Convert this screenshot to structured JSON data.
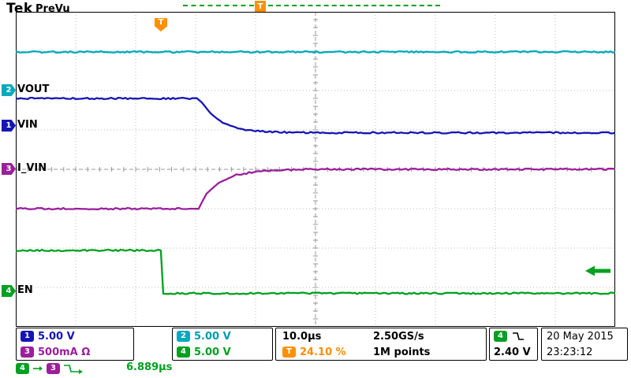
{
  "colors": {
    "ch1": "#1515b5",
    "ch2": "#00a9bd",
    "ch3": "#9b1f9b",
    "ch4": "#00a020",
    "trigger_orange": "#ff9000",
    "grid": "#bbbbbb",
    "grid_center": "#999999",
    "background": "#ffffff"
  },
  "header": {
    "logo": "Tek",
    "mode": "PreVu"
  },
  "record_bar": {
    "trigger_flag": "T"
  },
  "trigger_marker": {
    "label": "T"
  },
  "channel_labels": {
    "ch1": "VIN",
    "ch2": "VOUT",
    "ch3": "I_VIN",
    "ch4": "EN"
  },
  "left_markers": {
    "ch1": "1",
    "ch2": "2",
    "ch3": "3",
    "ch4": "4"
  },
  "chart_data": {
    "type": "line",
    "title": "",
    "x_axis": {
      "unit": "time",
      "seconds_per_div": "10.0µs",
      "divisions": 10
    },
    "y_axis": {
      "divisions": 8
    },
    "grid": true,
    "trigger": {
      "source": "CH4",
      "slope": "falling",
      "level": "2.40 V",
      "horizontal_position_percent": 24.1,
      "x_div": 2.41,
      "level_y_div": 6.58
    },
    "series": [
      {
        "name": "VOUT",
        "channel": 2,
        "color": "#00a9bd",
        "scale_per_div": "5.00 V",
        "ref_marker_y_div": 2.0,
        "points_div": [
          [
            0,
            1.02
          ],
          [
            10,
            1.02
          ]
        ]
      },
      {
        "name": "VIN",
        "channel": 1,
        "color": "#1515b5",
        "scale_per_div": "5.00 V",
        "ref_marker_y_div": 2.9,
        "points_div": [
          [
            0,
            2.2
          ],
          [
            3.02,
            2.2
          ],
          [
            3.1,
            2.3
          ],
          [
            3.25,
            2.58
          ],
          [
            3.45,
            2.82
          ],
          [
            3.75,
            2.98
          ],
          [
            4.2,
            3.05
          ],
          [
            5,
            3.07
          ],
          [
            10,
            3.07
          ]
        ]
      },
      {
        "name": "I_VIN",
        "channel": 3,
        "color": "#9b1f9b",
        "scale_per_div": "500mA",
        "ref_marker_y_div": 4.0,
        "points_div": [
          [
            0,
            5.0
          ],
          [
            3.05,
            5.0
          ],
          [
            3.18,
            4.62
          ],
          [
            3.38,
            4.35
          ],
          [
            3.68,
            4.14
          ],
          [
            4.1,
            4.04
          ],
          [
            4.8,
            4.0
          ],
          [
            10,
            4.0
          ]
        ]
      },
      {
        "name": "EN",
        "channel": 4,
        "color": "#00a020",
        "scale_per_div": "5.00 V",
        "ref_marker_y_div": 7.1,
        "points_div": [
          [
            0,
            6.06
          ],
          [
            2.42,
            6.06
          ],
          [
            2.46,
            7.15
          ],
          [
            10,
            7.15
          ]
        ]
      }
    ],
    "delay_measurement": {
      "from": "CH4",
      "to": "CH3",
      "value": "6.889µs"
    }
  },
  "readouts": {
    "ch1": {
      "badge": "1",
      "value": "5.00 V"
    },
    "ch2": {
      "badge": "2",
      "value": "5.00 V"
    },
    "ch3": {
      "badge": "3",
      "value": "500mA Ω"
    },
    "ch4": {
      "badge": "4",
      "value": "5.00 V"
    },
    "horizontal": {
      "timebase": "10.0µs",
      "sample_rate": "2.50GS/s"
    },
    "acquisition": {
      "trigger_badge": "T",
      "trigger_position": "24.10 %",
      "record_length": "1M points"
    },
    "trigger": {
      "source_badge": "4",
      "level": "2.40 V"
    },
    "datetime": {
      "date": "20 May 2015",
      "time": "23:23:12"
    },
    "delay": {
      "from_badge": "4",
      "to_badge": "3",
      "value": "6.889µs"
    }
  }
}
